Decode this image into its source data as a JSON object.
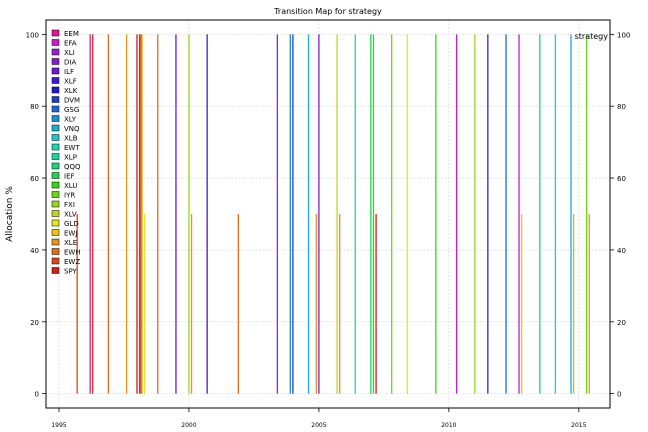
{
  "chart_data": {
    "type": "bar",
    "title": "Transition Map for strategy",
    "ylabel": "Allocation %",
    "xlabel": "",
    "corner_label": "strategy",
    "xlim": [
      1994.5,
      2016.2
    ],
    "ylim": [
      -4,
      104
    ],
    "x_ticks": [
      1995,
      2000,
      2005,
      2010,
      2015
    ],
    "y_ticks": [
      0,
      20,
      40,
      60,
      80,
      100
    ],
    "grid": true,
    "legend_position": "top-left",
    "series": [
      {
        "name": "EEM",
        "color": "#e3178e"
      },
      {
        "name": "EFA",
        "color": "#c41ec9"
      },
      {
        "name": "XLI",
        "color": "#9b1ecf"
      },
      {
        "name": "DIA",
        "color": "#8a1ad0"
      },
      {
        "name": "ILF",
        "color": "#6d1ad3"
      },
      {
        "name": "XLF",
        "color": "#3e1ad6"
      },
      {
        "name": "XLK",
        "color": "#1a1ad6"
      },
      {
        "name": "DVM",
        "color": "#1a3ed6"
      },
      {
        "name": "GSG",
        "color": "#1a6ad6"
      },
      {
        "name": "XLY",
        "color": "#1a8ed6"
      },
      {
        "name": "VNQ",
        "color": "#1aaed6"
      },
      {
        "name": "XLB",
        "color": "#1ac9d6"
      },
      {
        "name": "EWT",
        "color": "#1ad6bb"
      },
      {
        "name": "XLP",
        "color": "#1ad69b"
      },
      {
        "name": "QQQ",
        "color": "#1ad67a"
      },
      {
        "name": "IEF",
        "color": "#1ad650"
      },
      {
        "name": "XLU",
        "color": "#35d61a"
      },
      {
        "name": "IYR",
        "color": "#6ad61a"
      },
      {
        "name": "FXI",
        "color": "#9bd61a"
      },
      {
        "name": "XLV",
        "color": "#c4d61a"
      },
      {
        "name": "GLD",
        "color": "#e6e61a"
      },
      {
        "name": "EWJ",
        "color": "#e6c41a"
      },
      {
        "name": "XLE",
        "color": "#e6941a"
      },
      {
        "name": "EWH",
        "color": "#e6691a"
      },
      {
        "name": "EWZ",
        "color": "#d6481a"
      },
      {
        "name": "SPY",
        "color": "#c8231a"
      }
    ],
    "transitions": [
      {
        "x": 1995.7,
        "value": 50,
        "color": "#d6481a"
      },
      {
        "x": 1996.2,
        "value": 100,
        "color": "#e3178e"
      },
      {
        "x": 1996.3,
        "value": 100,
        "color": "#c8231a"
      },
      {
        "x": 1996.9,
        "value": 100,
        "color": "#e6691a"
      },
      {
        "x": 1997.6,
        "value": 100,
        "color": "#e6941a"
      },
      {
        "x": 1998.0,
        "value": 100,
        "color": "#c8231a"
      },
      {
        "x": 1998.1,
        "value": 100,
        "color": "#e3178e"
      },
      {
        "x": 1998.15,
        "value": 100,
        "color": "#d6481a"
      },
      {
        "x": 1998.2,
        "value": 100,
        "color": "#e6c41a"
      },
      {
        "x": 1998.3,
        "value": 50,
        "color": "#e6e61a"
      },
      {
        "x": 1998.8,
        "value": 100,
        "color": "#e6691a"
      },
      {
        "x": 1999.5,
        "value": 100,
        "color": "#6d1ad3"
      },
      {
        "x": 2000.0,
        "value": 100,
        "color": "#9bd61a"
      },
      {
        "x": 2000.1,
        "value": 50,
        "color": "#e6941a"
      },
      {
        "x": 2000.7,
        "value": 100,
        "color": "#3e1ad6"
      },
      {
        "x": 2001.9,
        "value": 50,
        "color": "#e6691a"
      },
      {
        "x": 2003.4,
        "value": 100,
        "color": "#9b1ecf"
      },
      {
        "x": 2003.9,
        "value": 100,
        "color": "#1a8ed6"
      },
      {
        "x": 2004.0,
        "value": 100,
        "color": "#1a3ed6"
      },
      {
        "x": 2004.6,
        "value": 100,
        "color": "#1aaed6"
      },
      {
        "x": 2004.9,
        "value": 50,
        "color": "#e6941a"
      },
      {
        "x": 2005.0,
        "value": 100,
        "color": "#8a1ad0"
      },
      {
        "x": 2005.7,
        "value": 100,
        "color": "#c4d61a"
      },
      {
        "x": 2005.8,
        "value": 50,
        "color": "#e6941a"
      },
      {
        "x": 2006.4,
        "value": 100,
        "color": "#1ad6bb"
      },
      {
        "x": 2007.0,
        "value": 100,
        "color": "#1ad650"
      },
      {
        "x": 2007.1,
        "value": 100,
        "color": "#35d61a"
      },
      {
        "x": 2007.2,
        "value": 50,
        "color": "#c8231a"
      },
      {
        "x": 2007.8,
        "value": 100,
        "color": "#6ad61a"
      },
      {
        "x": 2008.4,
        "value": 100,
        "color": "#e6e61a"
      },
      {
        "x": 2009.5,
        "value": 100,
        "color": "#35d61a"
      },
      {
        "x": 2010.3,
        "value": 100,
        "color": "#c41ec9"
      },
      {
        "x": 2011.0,
        "value": 100,
        "color": "#9bd61a"
      },
      {
        "x": 2011.5,
        "value": 100,
        "color": "#3e1ad6"
      },
      {
        "x": 2012.2,
        "value": 100,
        "color": "#1a6ad6"
      },
      {
        "x": 2012.7,
        "value": 100,
        "color": "#c41ec9"
      },
      {
        "x": 2012.8,
        "value": 50,
        "color": "#e6c41a"
      },
      {
        "x": 2013.5,
        "value": 100,
        "color": "#1ad67a"
      },
      {
        "x": 2014.1,
        "value": 100,
        "color": "#1ac9d6"
      },
      {
        "x": 2014.7,
        "value": 100,
        "color": "#1aaed6"
      },
      {
        "x": 2014.8,
        "value": 50,
        "color": "#9bd61a"
      },
      {
        "x": 2015.3,
        "value": 100,
        "color": "#6ad61a"
      },
      {
        "x": 2015.4,
        "value": 50,
        "color": "#e6941a"
      }
    ]
  }
}
